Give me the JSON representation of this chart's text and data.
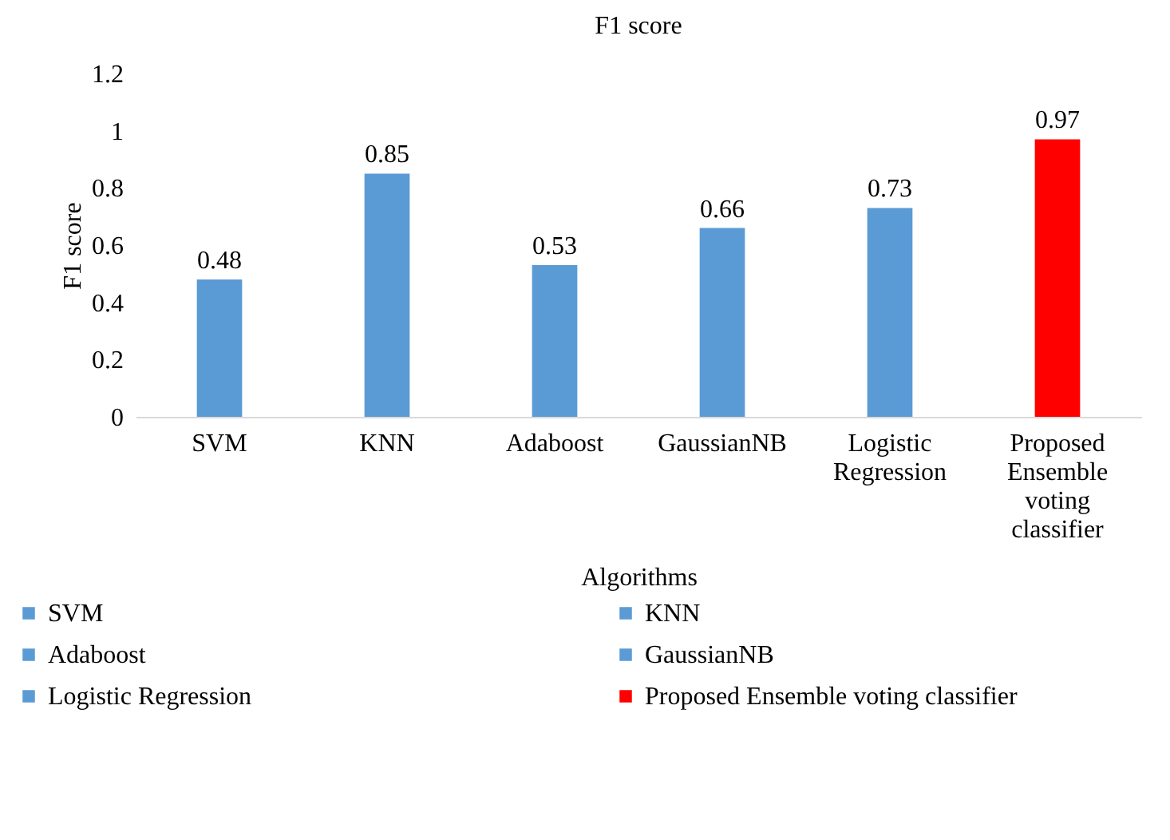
{
  "chart_data": {
    "type": "bar",
    "title": "F1 score",
    "xlabel": "Algorithms",
    "ylabel": "F1 score",
    "categories": [
      "SVM",
      "KNN",
      "Adaboost",
      "GaussianNB",
      "Logistic Regression",
      "Proposed Ensemble voting classifier"
    ],
    "stacked": true,
    "series": [
      {
        "name": "SVM",
        "color": "#5b9bd5",
        "values": [
          0.48,
          null,
          null,
          null,
          null,
          null
        ]
      },
      {
        "name": "KNN",
        "color": "#5b9bd5",
        "values": [
          null,
          0.85,
          null,
          null,
          null,
          null
        ]
      },
      {
        "name": "Adaboost",
        "color": "#5b9bd5",
        "values": [
          null,
          null,
          0.53,
          null,
          null,
          null
        ]
      },
      {
        "name": "GaussianNB",
        "color": "#5b9bd5",
        "values": [
          null,
          null,
          null,
          0.66,
          null,
          null
        ]
      },
      {
        "name": "Logistic Regression",
        "color": "#5b9bd5",
        "values": [
          null,
          null,
          null,
          null,
          0.73,
          null
        ]
      },
      {
        "name": "Proposed Ensemble voting classifier",
        "color": "#ff0000",
        "values": [
          null,
          null,
          null,
          null,
          null,
          0.97
        ]
      }
    ],
    "ylim": [
      0,
      1.2
    ],
    "yticks": [
      0,
      0.2,
      0.4,
      0.6,
      0.8,
      1,
      1.2
    ],
    "grid": false,
    "data_labels": true,
    "legend": "bottom"
  }
}
